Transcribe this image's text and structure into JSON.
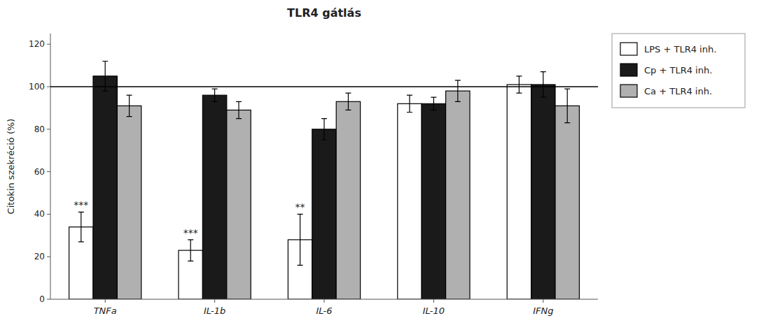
{
  "chart_data": {
    "type": "bar",
    "title": "TLR4 gátlás",
    "ylabel": "Citokin szekréció (%)",
    "categories": [
      "TNFa",
      "IL-1b",
      "IL-6",
      "IL-10",
      "IFNg"
    ],
    "series": [
      {
        "name": "LPS + TLR4 inh.",
        "color": "#ffffff",
        "values": [
          34,
          23,
          28,
          92,
          101
        ],
        "errors": [
          7,
          5,
          12,
          4,
          4
        ]
      },
      {
        "name": "Cp + TLR4 inh.",
        "color": "#1a1a1a",
        "values": [
          105,
          96,
          80,
          92,
          101
        ],
        "errors": [
          7,
          3,
          5,
          3,
          6
        ]
      },
      {
        "name": "Ca + TLR4 inh.",
        "color": "#b0b0b0",
        "values": [
          91,
          89,
          93,
          98,
          91
        ],
        "errors": [
          5,
          4,
          4,
          5,
          8
        ]
      }
    ],
    "annotations": [
      {
        "text": "***",
        "category": "TNFa",
        "series": "LPS + TLR4 inh."
      },
      {
        "text": "***",
        "category": "IL-1b",
        "series": "LPS + TLR4 inh."
      },
      {
        "text": "**",
        "category": "IL-6",
        "series": "LPS + TLR4 inh."
      }
    ],
    "reference_line": 100,
    "ylim": [
      0,
      125
    ],
    "yticks": [
      0,
      20,
      40,
      60,
      80,
      100,
      120
    ],
    "grid": false,
    "legend": "right"
  }
}
